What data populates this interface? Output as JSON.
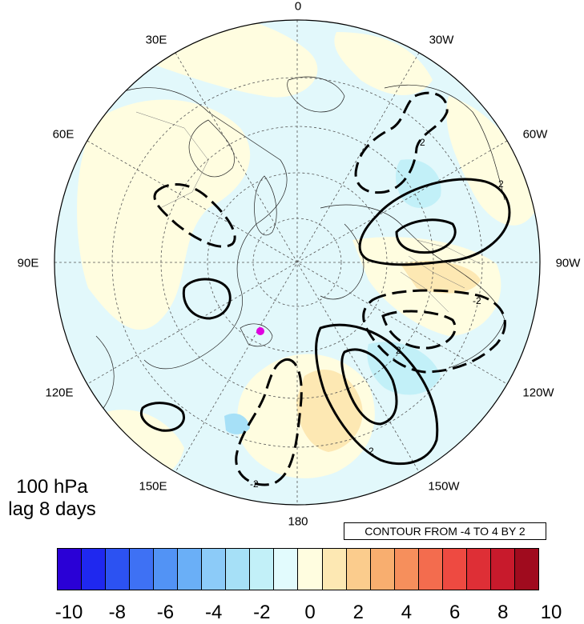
{
  "map": {
    "projection": "north polar stereographic",
    "longitude_labels": [
      "0",
      "30W",
      "60W",
      "90W",
      "120W",
      "150W",
      "180",
      "150E",
      "120E",
      "90E",
      "60E",
      "30E"
    ],
    "contour_labels": [
      "-2",
      "2",
      "2",
      "-2",
      "2",
      "-2"
    ],
    "level_text": "100 hPa",
    "lag_text": "lag 8 days",
    "contour_note": "CONTOUR FROM -4 TO 4 BY 2",
    "marker_color": "#e000e0"
  },
  "colorbar": {
    "colors": [
      "#2a00d6",
      "#1f28ef",
      "#2c52f2",
      "#3e71f4",
      "#5293f5",
      "#6aaff7",
      "#8ccbf8",
      "#a6e0f7",
      "#c2f0f8",
      "#e2fbfd",
      "#fffde0",
      "#fde8b3",
      "#fbcc8d",
      "#f8ae6f",
      "#f68f5c",
      "#f36c4e",
      "#ee4a41",
      "#de2f36",
      "#c81a2c",
      "#a00b1e"
    ],
    "tick_labels": [
      "-10",
      "-8",
      "-6",
      "-4",
      "-2",
      "0",
      "2",
      "4",
      "6",
      "8",
      "10"
    ]
  }
}
